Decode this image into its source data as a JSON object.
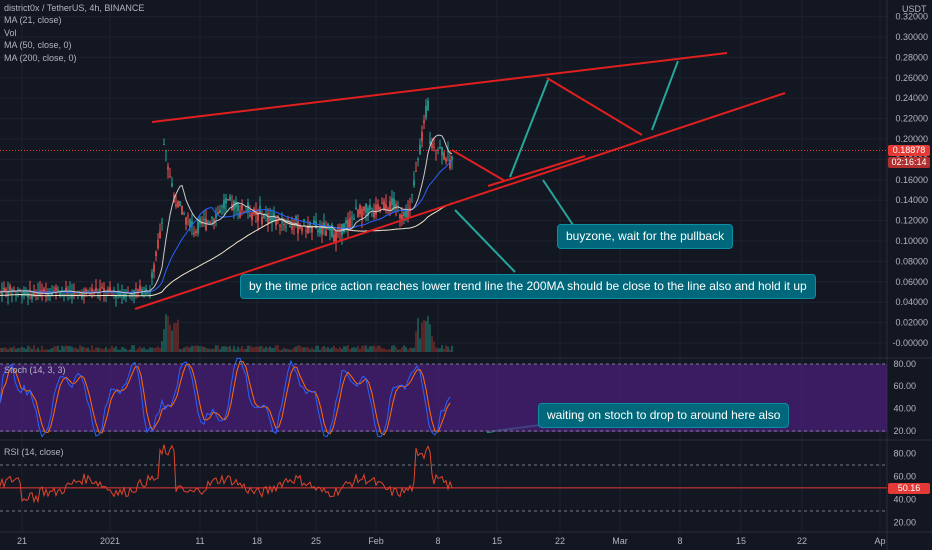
{
  "header": {
    "symbol_line": "district0x / TetherUS, 4h, BINANCE",
    "currency": "USDT",
    "indicators": [
      "MA (21, close)",
      "Vol",
      "MA (50, close, 0)",
      "MA (200, close, 0)"
    ]
  },
  "price_axis": {
    "ticks": [
      "0.32000",
      "0.30000",
      "0.28000",
      "0.26000",
      "0.24000",
      "0.22000",
      "0.20000",
      "0.18000",
      "0.16000",
      "0.14000",
      "0.12000",
      "0.10000",
      "0.08000",
      "0.06000",
      "0.04000",
      "0.02000",
      "-0.00000"
    ],
    "last_price": "0.18878",
    "countdown": "02:16:14"
  },
  "stoch_panel": {
    "title": "Stoch (14, 3, 3)",
    "ticks": [
      "80.00",
      "60.00",
      "40.00",
      "20.00"
    ]
  },
  "rsi_panel": {
    "title": "RSI (14, close)",
    "ticks": [
      "80.00",
      "60.00",
      "40.00",
      "20.00"
    ],
    "value": "50.16"
  },
  "time_axis": [
    "21",
    "2021",
    "11",
    "18",
    "25",
    "Feb",
    "8",
    "15",
    "22",
    "Mar",
    "8",
    "15",
    "22",
    "Ap"
  ],
  "annotations": {
    "buyzone": "buyzone, wait for the pullback",
    "ma200": "by the time price action reaches lower trend line the 200MA should be close to the line also and hold it up",
    "stoch": "waiting on stoch to drop to around here also"
  },
  "colors": {
    "background": "#131722",
    "trendline": "#e01f1f",
    "projection": "#26a69a",
    "candle_up": "#26a69a",
    "candle_down": "#ef5350",
    "ma21": "#c9c9c9",
    "ma50": "#2962ff",
    "ma200": "#f2e6c9",
    "stoch_bg": "#4a1f7a",
    "stoch_k": "#2962ff",
    "stoch_d": "#ff6d00",
    "rsi_line": "#e0452b",
    "price_tag": "#e53935",
    "note_bg": "#00687a"
  }
}
